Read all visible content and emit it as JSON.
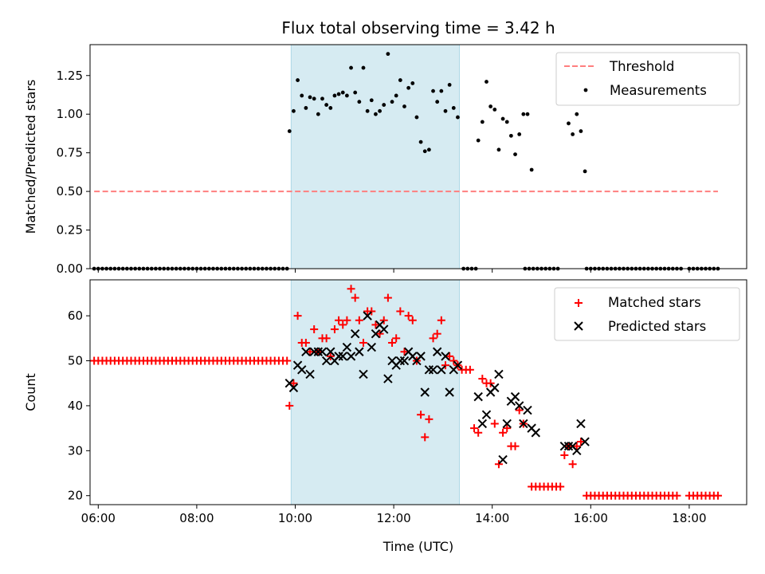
{
  "chart_data": [
    {
      "type": "scatter",
      "title": "Flux total observing time = 3.42 h",
      "ylabel": "Matched/Predicted stars",
      "xlabel": "",
      "xlim": [
        "05:50",
        "19:10"
      ],
      "ylim": [
        0,
        1.45
      ],
      "x_ticks": [
        "06:00",
        "08:00",
        "10:00",
        "12:00",
        "14:00",
        "16:00",
        "18:00"
      ],
      "y_ticks": [
        "0.00",
        "0.25",
        "0.50",
        "0.75",
        "1.00",
        "1.25"
      ],
      "shaded_span": {
        "start": "09:55",
        "end": "13:20",
        "color": "#add8e6"
      },
      "legend_position": "upper right",
      "series": [
        {
          "name": "Threshold",
          "style": "dashed-line",
          "color": "#ff7f7f",
          "x": [
            "05:55",
            "18:35"
          ],
          "y": [
            0.5,
            0.5
          ]
        },
        {
          "name": "Measurements",
          "style": "dot",
          "color": "#000000",
          "points_zero_ranges": [
            [
              "05:55",
              "09:50"
            ],
            [
              "13:25",
              "13:40"
            ],
            [
              "14:40",
              "15:20"
            ],
            [
              "15:55",
              "17:50"
            ],
            [
              "18:00",
              "18:35"
            ]
          ],
          "points": [
            [
              "09:53",
              0.89
            ],
            [
              "09:58",
              1.02
            ],
            [
              "10:03",
              1.22
            ],
            [
              "10:08",
              1.12
            ],
            [
              "10:13",
              1.04
            ],
            [
              "10:18",
              1.11
            ],
            [
              "10:23",
              1.1
            ],
            [
              "10:28",
              1.0
            ],
            [
              "10:33",
              1.1
            ],
            [
              "10:38",
              1.06
            ],
            [
              "10:43",
              1.04
            ],
            [
              "10:48",
              1.12
            ],
            [
              "10:53",
              1.13
            ],
            [
              "10:58",
              1.14
            ],
            [
              "11:03",
              1.12
            ],
            [
              "11:08",
              1.3
            ],
            [
              "11:13",
              1.14
            ],
            [
              "11:18",
              1.08
            ],
            [
              "11:23",
              1.3
            ],
            [
              "11:28",
              1.02
            ],
            [
              "11:33",
              1.09
            ],
            [
              "11:38",
              1.0
            ],
            [
              "11:43",
              1.02
            ],
            [
              "11:48",
              1.06
            ],
            [
              "11:53",
              1.39
            ],
            [
              "11:58",
              1.08
            ],
            [
              "12:03",
              1.12
            ],
            [
              "12:08",
              1.22
            ],
            [
              "12:13",
              1.05
            ],
            [
              "12:18",
              1.17
            ],
            [
              "12:23",
              1.2
            ],
            [
              "12:28",
              0.98
            ],
            [
              "12:33",
              0.82
            ],
            [
              "12:38",
              0.76
            ],
            [
              "12:43",
              0.77
            ],
            [
              "12:48",
              1.15
            ],
            [
              "12:53",
              1.08
            ],
            [
              "12:58",
              1.15
            ],
            [
              "13:03",
              1.02
            ],
            [
              "13:08",
              1.19
            ],
            [
              "13:13",
              1.04
            ],
            [
              "13:18",
              0.98
            ],
            [
              "13:43",
              0.83
            ],
            [
              "13:48",
              0.95
            ],
            [
              "13:53",
              1.21
            ],
            [
              "13:58",
              1.05
            ],
            [
              "14:03",
              1.03
            ],
            [
              "14:08",
              0.77
            ],
            [
              "14:13",
              0.97
            ],
            [
              "14:18",
              0.95
            ],
            [
              "14:23",
              0.86
            ],
            [
              "14:28",
              0.74
            ],
            [
              "14:33",
              0.87
            ],
            [
              "14:38",
              1.0
            ],
            [
              "14:43",
              1.0
            ],
            [
              "14:48",
              0.64
            ],
            [
              "15:33",
              0.94
            ],
            [
              "15:38",
              0.87
            ],
            [
              "15:43",
              1.0
            ],
            [
              "15:48",
              0.89
            ],
            [
              "15:53",
              0.63
            ]
          ]
        }
      ]
    },
    {
      "type": "scatter",
      "title": "",
      "ylabel": "Count",
      "xlabel": "Time (UTC)",
      "xlim": [
        "05:50",
        "19:10"
      ],
      "ylim": [
        18,
        68
      ],
      "x_ticks": [
        "06:00",
        "08:00",
        "10:00",
        "12:00",
        "14:00",
        "16:00",
        "18:00"
      ],
      "y_ticks": [
        "20",
        "30",
        "40",
        "50",
        "60"
      ],
      "shaded_span": {
        "start": "09:55",
        "end": "13:20",
        "color": "#add8e6"
      },
      "legend_position": "upper right",
      "series": [
        {
          "name": "Matched stars",
          "style": "plus",
          "color": "#ff0000",
          "constant_runs": [
            {
              "from": "05:55",
              "to": "09:50",
              "y": 50
            },
            {
              "from": "14:48",
              "to": "15:23",
              "y": 22
            },
            {
              "from": "15:55",
              "to": "17:45",
              "y": 20
            },
            {
              "from": "18:00",
              "to": "18:35",
              "y": 20
            }
          ],
          "points": [
            [
              "09:53",
              40
            ],
            [
              "09:58",
              45
            ],
            [
              "10:03",
              60
            ],
            [
              "10:08",
              54
            ],
            [
              "10:13",
              54
            ],
            [
              "10:18",
              52
            ],
            [
              "10:23",
              57
            ],
            [
              "10:28",
              52
            ],
            [
              "10:33",
              55
            ],
            [
              "10:38",
              55
            ],
            [
              "10:43",
              51
            ],
            [
              "10:48",
              57
            ],
            [
              "10:53",
              59
            ],
            [
              "10:58",
              58
            ],
            [
              "11:03",
              59
            ],
            [
              "11:08",
              66
            ],
            [
              "11:13",
              64
            ],
            [
              "11:18",
              59
            ],
            [
              "11:23",
              54
            ],
            [
              "11:28",
              61
            ],
            [
              "11:33",
              61
            ],
            [
              "11:38",
              58
            ],
            [
              "11:43",
              56
            ],
            [
              "11:48",
              59
            ],
            [
              "11:53",
              64
            ],
            [
              "11:58",
              54
            ],
            [
              "12:03",
              55
            ],
            [
              "12:08",
              61
            ],
            [
              "12:13",
              52
            ],
            [
              "12:18",
              60
            ],
            [
              "12:23",
              59
            ],
            [
              "12:28",
              50
            ],
            [
              "12:33",
              38
            ],
            [
              "12:38",
              33
            ],
            [
              "12:43",
              37
            ],
            [
              "12:48",
              55
            ],
            [
              "12:53",
              56
            ],
            [
              "12:58",
              59
            ],
            [
              "13:03",
              49
            ],
            [
              "13:08",
              51
            ],
            [
              "13:13",
              50
            ],
            [
              "13:18",
              49
            ],
            [
              "13:23",
              48
            ],
            [
              "13:28",
              48
            ],
            [
              "13:33",
              48
            ],
            [
              "13:38",
              35
            ],
            [
              "13:43",
              34
            ],
            [
              "13:48",
              46
            ],
            [
              "13:53",
              45
            ],
            [
              "13:58",
              45
            ],
            [
              "14:03",
              36
            ],
            [
              "14:08",
              27
            ],
            [
              "14:13",
              34
            ],
            [
              "14:18",
              35
            ],
            [
              "14:23",
              31
            ],
            [
              "14:28",
              31
            ],
            [
              "14:33",
              39
            ],
            [
              "14:38",
              36
            ],
            [
              "15:28",
              29
            ],
            [
              "15:33",
              31
            ],
            [
              "15:38",
              27
            ],
            [
              "15:43",
              31
            ],
            [
              "15:48",
              32
            ]
          ]
        },
        {
          "name": "Predicted stars",
          "style": "x",
          "color": "#000000",
          "points": [
            [
              "09:53",
              45
            ],
            [
              "09:58",
              44
            ],
            [
              "10:03",
              49
            ],
            [
              "10:08",
              48
            ],
            [
              "10:13",
              52
            ],
            [
              "10:18",
              47
            ],
            [
              "10:23",
              52
            ],
            [
              "10:28",
              52
            ],
            [
              "10:33",
              52
            ],
            [
              "10:38",
              50
            ],
            [
              "10:43",
              52
            ],
            [
              "10:48",
              50
            ],
            [
              "10:53",
              51
            ],
            [
              "10:58",
              51
            ],
            [
              "11:03",
              53
            ],
            [
              "11:08",
              51
            ],
            [
              "11:13",
              56
            ],
            [
              "11:18",
              52
            ],
            [
              "11:23",
              47
            ],
            [
              "11:28",
              60
            ],
            [
              "11:33",
              53
            ],
            [
              "11:38",
              56
            ],
            [
              "11:43",
              58
            ],
            [
              "11:48",
              57
            ],
            [
              "11:53",
              46
            ],
            [
              "11:58",
              50
            ],
            [
              "12:03",
              49
            ],
            [
              "12:08",
              50
            ],
            [
              "12:13",
              50
            ],
            [
              "12:18",
              52
            ],
            [
              "12:23",
              51
            ],
            [
              "12:28",
              50
            ],
            [
              "12:33",
              51
            ],
            [
              "12:38",
              43
            ],
            [
              "12:43",
              48
            ],
            [
              "12:48",
              48
            ],
            [
              "12:53",
              52
            ],
            [
              "12:58",
              48
            ],
            [
              "13:03",
              51
            ],
            [
              "13:08",
              43
            ],
            [
              "13:13",
              48
            ],
            [
              "13:18",
              49
            ],
            [
              "13:43",
              42
            ],
            [
              "13:48",
              36
            ],
            [
              "13:53",
              38
            ],
            [
              "13:58",
              43
            ],
            [
              "14:03",
              44
            ],
            [
              "14:08",
              47
            ],
            [
              "14:13",
              28
            ],
            [
              "14:18",
              36
            ],
            [
              "14:23",
              41
            ],
            [
              "14:28",
              42
            ],
            [
              "14:33",
              40
            ],
            [
              "14:38",
              36
            ],
            [
              "14:43",
              39
            ],
            [
              "14:48",
              35
            ],
            [
              "14:53",
              34
            ],
            [
              "15:28",
              31
            ],
            [
              "15:33",
              31
            ],
            [
              "15:38",
              31
            ],
            [
              "15:43",
              30
            ],
            [
              "15:48",
              36
            ],
            [
              "15:53",
              32
            ]
          ]
        }
      ]
    }
  ]
}
